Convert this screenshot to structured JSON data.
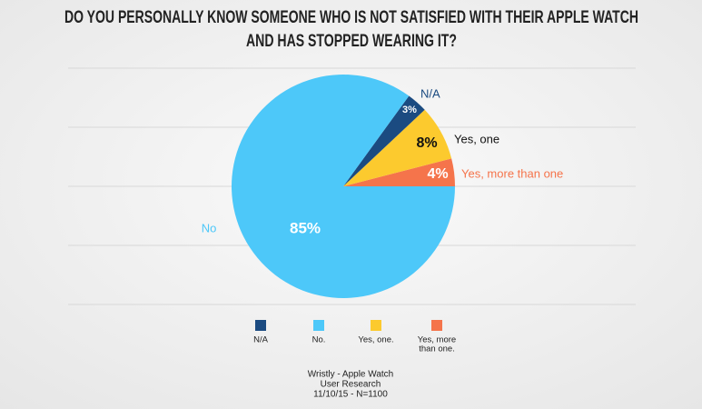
{
  "chart_data": {
    "type": "pie",
    "title_lines": [
      "DO YOU PERSONALLY KNOW SOMEONE WHO IS NOT SATISFIED WITH THEIR APPLE WATCH",
      "AND HAS STOPPED WEARING IT?"
    ],
    "categories": [
      "N/A",
      "No",
      "Yes, one",
      "Yes, more than one"
    ],
    "values": [
      3,
      85,
      8,
      4
    ],
    "value_labels": [
      "3%",
      "85%",
      "8%",
      "4%"
    ],
    "colors": [
      "#1b4b81",
      "#4dc8f9",
      "#fcca2e",
      "#f5744b"
    ],
    "legend_labels": [
      [
        "N/A"
      ],
      [
        "No."
      ],
      [
        "Yes, one."
      ],
      [
        "Yes, more",
        "than one."
      ]
    ],
    "source_lines": [
      "Wristly - Apple Watch",
      "User Research",
      "11/10/15 - N=1100"
    ]
  }
}
